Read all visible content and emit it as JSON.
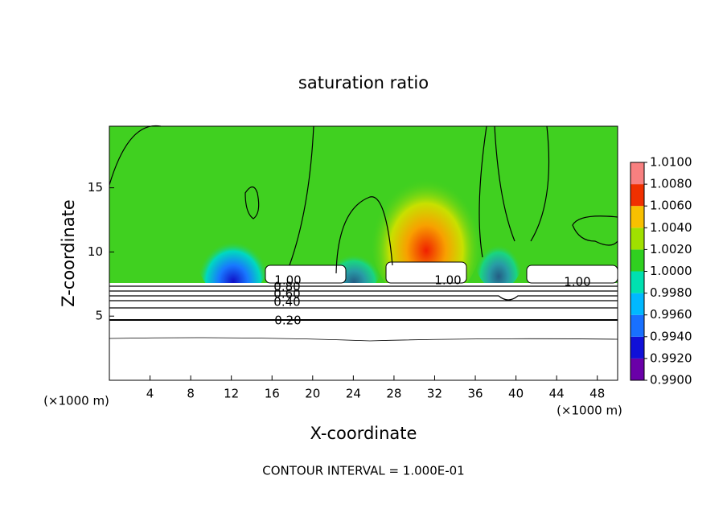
{
  "chart_data": {
    "type": "contour",
    "title": "saturation ratio",
    "xlabel": "X-coordinate",
    "ylabel": "Z-coordinate",
    "x_unit_labels": [
      "(×1000 m)",
      "(×1000 m)"
    ],
    "footnote": "CONTOUR INTERVAL = 1.000E-01",
    "xlim": [
      0,
      50
    ],
    "xticks": [
      4,
      8,
      12,
      16,
      20,
      24,
      28,
      32,
      36,
      40,
      44,
      48
    ],
    "ylim": [
      0,
      19.8
    ],
    "yticks": [
      5,
      10,
      15
    ],
    "contour_labels": [
      "1.00",
      "0.80",
      "0.60",
      "0.40",
      "0.20",
      "1.00",
      "1.00"
    ],
    "colorbar": {
      "lim": [
        0.99,
        1.01
      ],
      "ticks": [
        {
          "value": 0.99,
          "label": "0.9900"
        },
        {
          "value": 0.992,
          "label": "0.9920"
        },
        {
          "value": 0.994,
          "label": "0.9940"
        },
        {
          "value": 0.996,
          "label": "0.9960"
        },
        {
          "value": 0.998,
          "label": "0.9980"
        },
        {
          "value": 1.0,
          "label": "1.0000"
        },
        {
          "value": 1.002,
          "label": "1.0020"
        },
        {
          "value": 1.004,
          "label": "1.0040"
        },
        {
          "value": 1.006,
          "label": "1.0060"
        },
        {
          "value": 1.008,
          "label": "1.0080"
        },
        {
          "value": 1.01,
          "label": "1.0100"
        }
      ],
      "colors": [
        "#6a00a8",
        "#1010d8",
        "#1870ff",
        "#00b8ff",
        "#00e0b0",
        "#30d020",
        "#a0e000",
        "#f8c000",
        "#f03000",
        "#f88080"
      ]
    }
  }
}
